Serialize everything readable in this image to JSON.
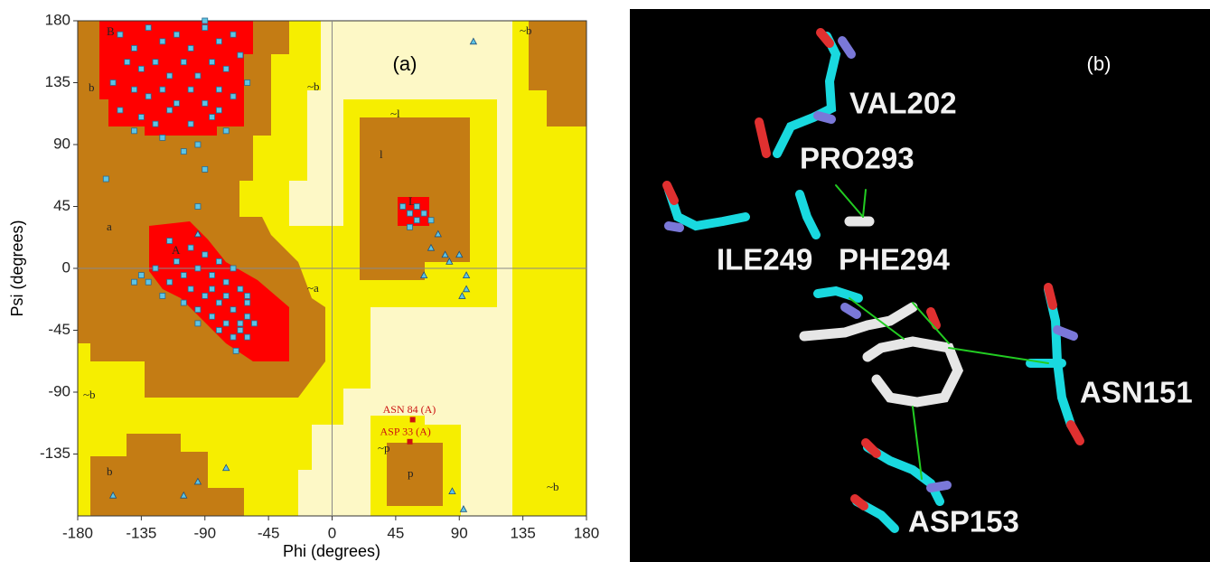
{
  "chart_data": {
    "type": "scatter",
    "panel_label": "(a)",
    "xlabel": "Phi (degrees)",
    "ylabel": "Psi (degrees)",
    "xlim": [
      -180,
      180
    ],
    "ylim": [
      -180,
      180
    ],
    "xticks": [
      -180,
      -135,
      -90,
      -45,
      0,
      45,
      90,
      135,
      180
    ],
    "yticks": [
      -135,
      -90,
      -45,
      0,
      45,
      90,
      135,
      180
    ],
    "zero_lines": true,
    "region_labels": [
      "B",
      "b",
      "~b",
      "~b",
      "~l",
      "l",
      "L",
      "a",
      "A",
      "~a",
      "~b",
      "~p",
      "p",
      "b",
      "~b"
    ],
    "series": [
      {
        "marker": "square",
        "color": "#5ec4e4",
        "x": [
          -150,
          -140,
          -130,
          -120,
          -110,
          -100,
          -90,
          -80,
          -70,
          -145,
          -135,
          -125,
          -115,
          -105,
          -95,
          -85,
          -75,
          -65,
          -155,
          -140,
          -130,
          -120,
          -110,
          -100,
          -90,
          -80,
          -70,
          -60,
          -150,
          -135,
          -125,
          -115,
          -100,
          -85,
          -75,
          -120,
          -95,
          -105,
          -140,
          -90,
          -160,
          -90,
          -95,
          -80,
          -100,
          -90,
          -80,
          -70,
          -95,
          -85,
          -75,
          -65,
          -110,
          -105,
          -100,
          -90,
          -80,
          -70,
          -60,
          -115,
          -95,
          -85,
          -75,
          -65,
          -60,
          -70,
          -80,
          -55,
          -65,
          -125,
          -130,
          -120,
          -60,
          -75,
          -85,
          -105,
          -95,
          -68,
          -60,
          -135,
          -140,
          -115,
          50,
          55,
          60,
          60,
          65,
          55,
          70
        ],
        "y": [
          170,
          160,
          175,
          165,
          170,
          160,
          175,
          165,
          170,
          150,
          145,
          150,
          140,
          150,
          140,
          150,
          145,
          155,
          135,
          130,
          125,
          130,
          120,
          130,
          120,
          130,
          125,
          135,
          115,
          110,
          105,
          115,
          105,
          110,
          100,
          95,
          90,
          85,
          100,
          180,
          65,
          72,
          45,
          115,
          15,
          10,
          5,
          0,
          0,
          -5,
          -10,
          -15,
          5,
          -5,
          -15,
          -20,
          -25,
          -30,
          -35,
          -10,
          -30,
          -35,
          -40,
          -45,
          -25,
          -50,
          -45,
          -40,
          -40,
          0,
          -10,
          -20,
          -20,
          -20,
          -15,
          -25,
          -40,
          -60,
          -50,
          -5,
          -10,
          20,
          45,
          40,
          35,
          45,
          40,
          30,
          35
        ]
      },
      {
        "marker": "triangle",
        "color": "#5ec4e4",
        "x": [
          100,
          -95,
          75,
          70,
          80,
          90,
          95,
          95,
          92,
          65,
          83,
          -155,
          -105,
          85,
          93,
          -75,
          -95
        ],
        "y": [
          165,
          25,
          25,
          15,
          10,
          10,
          -5,
          -15,
          -20,
          -5,
          5,
          -165,
          -165,
          -162,
          -175,
          -145,
          -155
        ]
      }
    ],
    "annotations": [
      {
        "text": "ASN 84 (A)",
        "x": 57,
        "y": -110,
        "color": "#cc1111"
      },
      {
        "text": "ASP 33 (A)",
        "x": 55,
        "y": -126,
        "color": "#cc1111"
      }
    ]
  },
  "panel_b": {
    "label": "(b)",
    "residues": [
      "VAL202",
      "PRO293",
      "ILE249",
      "PHE294",
      "ASN151",
      "ASP153"
    ]
  }
}
